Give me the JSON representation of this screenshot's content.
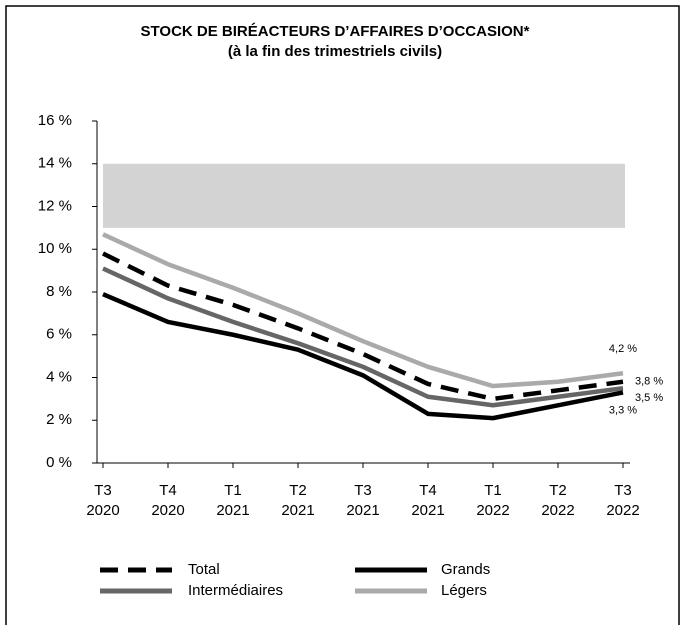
{
  "chart_data": {
    "type": "line",
    "title": "STOCK DE BIRÉACTEURS D’AFFAIRES D’OCCASION*",
    "subtitle": "(à la fin des trimestriels civils)",
    "categories": [
      "T3\n2020",
      "T4\n2020",
      "T1\n2021",
      "T2\n2021",
      "T3\n2021",
      "T4\n2021",
      "T1\n2022",
      "T2\n2022",
      "T3\n2022"
    ],
    "shaded_range": [
      11,
      14
    ],
    "shaded_color": "#d3d3d3",
    "series": [
      {
        "name": "Total",
        "color": "#000000",
        "dash": true,
        "values": [
          9.8,
          8.3,
          7.4,
          6.3,
          5.1,
          3.7,
          3.0,
          3.4,
          3.8
        ],
        "value_labels": [
          null,
          null,
          null,
          null,
          null,
          null,
          null,
          null,
          "3,8 %"
        ]
      },
      {
        "name": "Grands",
        "color": "#000000",
        "dash": false,
        "values": [
          7.9,
          6.6,
          6.0,
          5.3,
          4.1,
          2.3,
          2.1,
          2.7,
          3.3
        ],
        "value_labels": [
          null,
          null,
          null,
          null,
          null,
          null,
          null,
          null,
          "3,3 %"
        ]
      },
      {
        "name": "Intermédiaires",
        "color": "#666666",
        "dash": false,
        "values": [
          9.1,
          7.7,
          6.6,
          5.6,
          4.5,
          3.1,
          2.7,
          3.1,
          3.5
        ],
        "value_labels": [
          null,
          null,
          null,
          null,
          null,
          null,
          null,
          null,
          "3,5 %"
        ]
      },
      {
        "name": "Légers",
        "color": "#aaaaaa",
        "dash": false,
        "values": [
          10.7,
          9.3,
          8.2,
          7.0,
          5.7,
          4.5,
          3.6,
          3.8,
          4.2
        ],
        "value_labels": [
          null,
          null,
          null,
          null,
          null,
          null,
          null,
          null,
          "4,2 %"
        ]
      }
    ],
    "ylim": [
      0,
      16
    ],
    "yticks": [
      {
        "value": 0,
        "label": "0 %"
      },
      {
        "value": 2,
        "label": "2 %"
      },
      {
        "value": 4,
        "label": "4 %"
      },
      {
        "value": 6,
        "label": "6 %"
      },
      {
        "value": 8,
        "label": "8 %"
      },
      {
        "value": 10,
        "label": "10 %"
      },
      {
        "value": 12,
        "label": "12 %"
      },
      {
        "value": 14,
        "label": "14 %"
      },
      {
        "value": 16,
        "label": "16 %"
      }
    ]
  }
}
